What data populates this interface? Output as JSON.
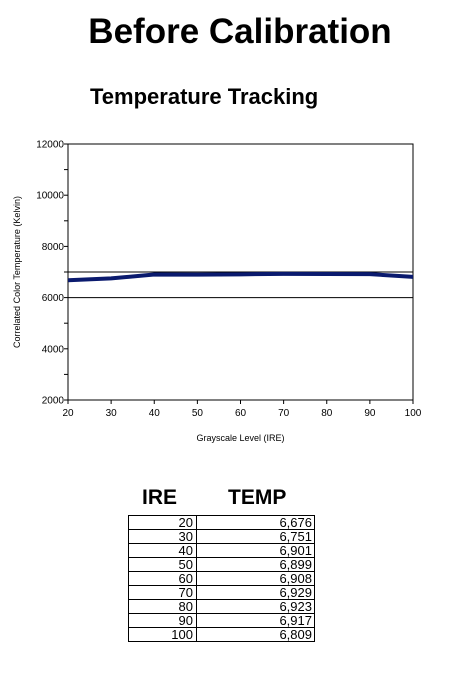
{
  "page_title": "Before Calibration",
  "chart_data": {
    "type": "line",
    "title": "Temperature Tracking",
    "xlabel": "Grayscale Level (IRE)",
    "ylabel": "Correlated Color Temperature (Kelvin)",
    "x": [
      20,
      30,
      40,
      50,
      60,
      70,
      80,
      90,
      100
    ],
    "xlim": [
      20,
      100
    ],
    "ylim": [
      2000,
      12000
    ],
    "xticks": [
      "20",
      "30",
      "40",
      "50",
      "60",
      "70",
      "80",
      "90",
      "100"
    ],
    "yticks": [
      "2000",
      "4000",
      "6000",
      "8000",
      "10000",
      "12000"
    ],
    "series": [
      {
        "values": [
          6676,
          6751,
          6901,
          6899,
          6908,
          6929,
          6923,
          6917,
          6809
        ],
        "color": "#0a1a6e"
      }
    ],
    "reference_lines": [
      7000,
      6000
    ],
    "grid": false
  },
  "table": {
    "headers": [
      "IRE",
      "TEMP"
    ],
    "rows": [
      [
        "20",
        "6,676"
      ],
      [
        "30",
        "6,751"
      ],
      [
        "40",
        "6,901"
      ],
      [
        "50",
        "6,899"
      ],
      [
        "60",
        "6,908"
      ],
      [
        "70",
        "6,929"
      ],
      [
        "80",
        "6,923"
      ],
      [
        "90",
        "6,917"
      ],
      [
        "100",
        "6,809"
      ]
    ]
  }
}
